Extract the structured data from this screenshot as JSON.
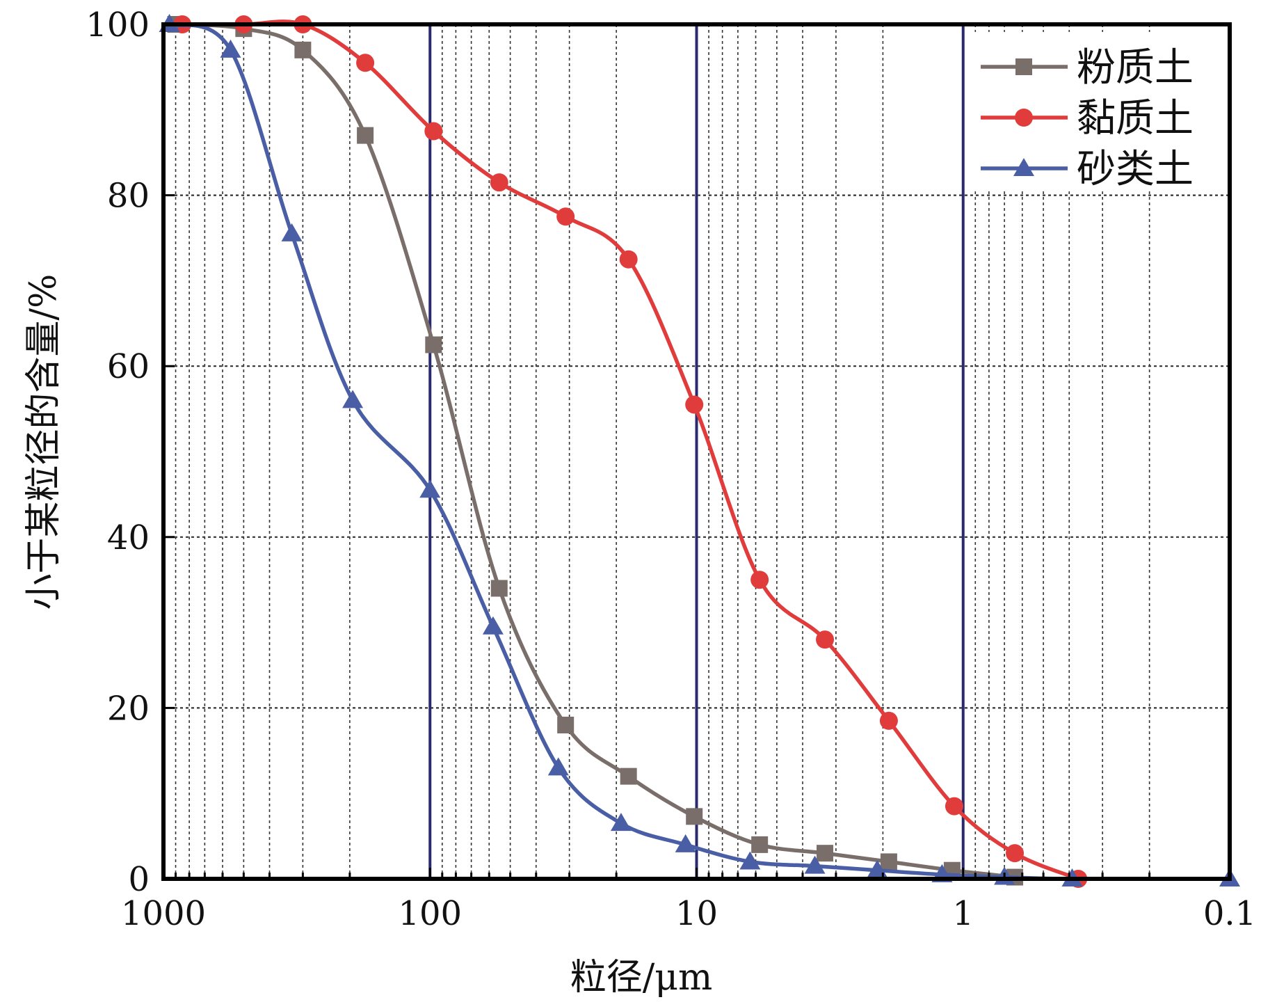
{
  "chart_data": {
    "type": "line",
    "xlabel": "粒径/μm",
    "ylabel": "小于某粒径的含量/%",
    "x_scale": "log",
    "x_reversed": true,
    "xlim": [
      1000,
      0.1
    ],
    "ylim": [
      0,
      100
    ],
    "x_ticks": [
      1000,
      100,
      10,
      1,
      0.1
    ],
    "x_tick_labels": [
      "1000",
      "100",
      "10",
      "1",
      "0.1"
    ],
    "y_ticks": [
      0,
      20,
      40,
      60,
      80,
      100
    ],
    "y_tick_labels": [
      "0",
      "20",
      "40",
      "60",
      "80",
      "100"
    ],
    "grid": true,
    "legend_position": "top-right",
    "series": [
      {
        "name": "粉质土",
        "marker": "square",
        "color": "#7a6e6a",
        "x": [
          900,
          500,
          300,
          175,
          97,
          55,
          31,
          18,
          10.2,
          5.8,
          3.3,
          1.9,
          1.1,
          0.64
        ],
        "y": [
          100,
          99.5,
          97,
          87,
          62.5,
          34,
          18,
          12,
          7.3,
          4,
          3,
          2,
          1,
          0.2
        ]
      },
      {
        "name": "黏质土",
        "marker": "circle",
        "color": "#e03c3c",
        "x": [
          850,
          500,
          300,
          175,
          97,
          55,
          31,
          18,
          10.2,
          5.8,
          3.3,
          1.9,
          1.08,
          0.64,
          0.37
        ],
        "y": [
          100,
          100,
          100,
          95.5,
          87.5,
          81.5,
          77.5,
          72.5,
          55.5,
          35,
          28,
          18.5,
          8.5,
          3,
          0
        ]
      },
      {
        "name": "砂类土",
        "marker": "triangle",
        "color": "#4a5ea5",
        "x": [
          950,
          560,
          330,
          195,
          100,
          58,
          33,
          19.2,
          11,
          6.3,
          3.6,
          2.1,
          1.2,
          0.7,
          0.39,
          0.1
        ],
        "y": [
          100,
          97,
          75.5,
          56,
          45.5,
          29.5,
          13,
          6.5,
          4,
          2,
          1.5,
          1,
          0.5,
          0.2,
          0,
          0
        ]
      }
    ],
    "vertical_reference_lines": [
      100,
      10,
      1
    ]
  }
}
